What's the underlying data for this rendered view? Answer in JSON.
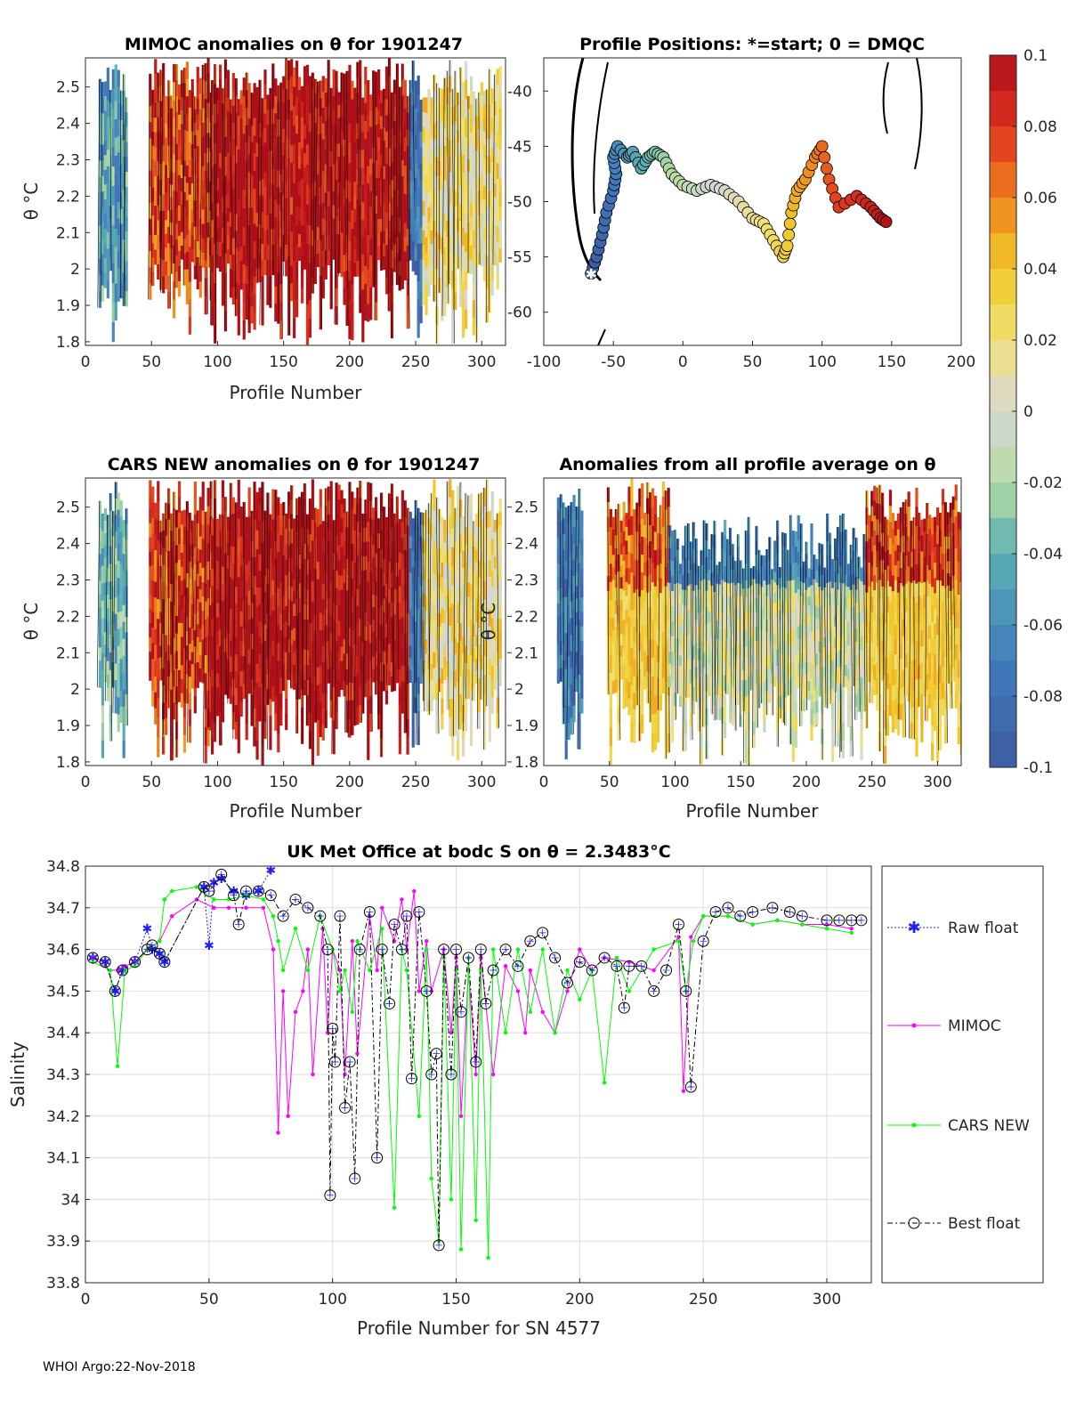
{
  "footer": "WHOI Argo:22-Nov-2018",
  "colors": {
    "axis": "#262626",
    "raw": "#1f1fff",
    "mimoc": "#ff00ff",
    "cars": "#00ff00",
    "best": "#000000"
  },
  "chart_data": [
    {
      "id": "mimoc",
      "type": "heatmap",
      "title": "MIMOC anomalies on θ  for 1901247",
      "xlabel": "Profile Number",
      "ylabel": "θ °C",
      "xlim": [
        0,
        318
      ],
      "ylim": [
        1.79,
        2.58
      ],
      "xticks": [
        "0",
        "50",
        "100",
        "150",
        "200",
        "250",
        "300"
      ],
      "yticks": [
        "1.8",
        "1.9",
        "2",
        "2.1",
        "2.2",
        "2.3",
        "2.4",
        "2.5"
      ],
      "profile_groups": [
        {
          "x": [
            10,
            32
          ],
          "anomaly": -0.05
        },
        {
          "x": [
            48,
            95
          ],
          "anomaly": 0.08
        },
        {
          "x": [
            95,
            245
          ],
          "anomaly": 0.1
        },
        {
          "x": [
            245,
            255
          ],
          "anomaly": -0.08
        },
        {
          "x": [
            255,
            315
          ],
          "anomaly": 0.02
        }
      ]
    },
    {
      "id": "positions",
      "type": "scatter",
      "title": "Profile Positions: *=start; 0 = DMQC",
      "xlim": [
        -100,
        200
      ],
      "ylim": [
        -63,
        -37
      ],
      "xticks": [
        "-100",
        "-50",
        "0",
        "50",
        "100",
        "150",
        "200"
      ],
      "yticks": [
        "-40",
        "-45",
        "-50",
        "-55",
        "-60"
      ],
      "track_lon": [
        -66,
        -62,
        -58,
        -55,
        -50,
        -48,
        -50,
        -47,
        -40,
        -36,
        -30,
        -25,
        -20,
        -14,
        -8,
        0,
        10,
        20,
        30,
        40,
        50,
        58,
        65,
        72,
        75,
        78,
        82,
        88,
        95,
        100,
        105,
        112,
        125,
        135,
        142,
        148
      ],
      "track_lat": [
        -56.5,
        -55,
        -53,
        -51,
        -49,
        -47.5,
        -46,
        -45,
        -46,
        -45.5,
        -47,
        -46,
        -45.5,
        -46,
        -47.5,
        -48.5,
        -49,
        -48.5,
        -49,
        -50,
        -51.5,
        -52,
        -53.5,
        -55,
        -54,
        -51,
        -49,
        -48,
        -46,
        -45,
        -48,
        -50.5,
        -49.5,
        -50.5,
        -51.5,
        -52
      ],
      "start": [
        -66,
        -56.5
      ]
    },
    {
      "id": "colorbar",
      "type": "heatmap",
      "ticks": [
        "0.1",
        "0.08",
        "0.06",
        "0.04",
        "0.02",
        "0",
        "-0.02",
        "-0.04",
        "-0.06",
        "-0.08",
        "-0.1"
      ],
      "range": [
        -0.1,
        0.1
      ]
    },
    {
      "id": "cars",
      "type": "heatmap",
      "title": "CARS NEW anomalies on θ for 1901247",
      "xlabel": "Profile Number",
      "ylabel": "θ °C",
      "xlim": [
        0,
        318
      ],
      "ylim": [
        1.79,
        2.58
      ],
      "xticks": [
        "0",
        "50",
        "100",
        "150",
        "200",
        "250",
        "300"
      ],
      "yticks": [
        "1.8",
        "1.9",
        "2",
        "2.1",
        "2.2",
        "2.3",
        "2.4",
        "2.5"
      ],
      "profile_groups": [
        {
          "x": [
            10,
            32
          ],
          "anomaly": -0.04
        },
        {
          "x": [
            48,
            95
          ],
          "anomaly": 0.08
        },
        {
          "x": [
            95,
            245
          ],
          "anomaly": 0.1
        },
        {
          "x": [
            245,
            255
          ],
          "anomaly": -0.08
        },
        {
          "x": [
            255,
            315
          ],
          "anomaly": 0.02
        }
      ]
    },
    {
      "id": "allavg",
      "type": "heatmap",
      "title": "Anomalies from all profile average on θ",
      "xlabel": "Profile Number",
      "ylabel": "θ °C",
      "xlim": [
        0,
        318
      ],
      "ylim": [
        1.79,
        2.58
      ],
      "xticks": [
        "0",
        "50",
        "100",
        "150",
        "200",
        "250",
        "300"
      ],
      "yticks": [
        "1.8",
        "1.9",
        "2",
        "2.1",
        "2.2",
        "2.3",
        "2.4",
        "2.5"
      ],
      "profile_groups": [
        {
          "x": [
            10,
            30
          ],
          "anomaly": -0.07
        },
        {
          "x": [
            48,
            95
          ],
          "anomaly": 0.07
        },
        {
          "x": [
            95,
            245
          ],
          "anomaly": 0.0
        },
        {
          "x": [
            245,
            318
          ],
          "anomaly": 0.08
        }
      ]
    },
    {
      "id": "salinity",
      "type": "line",
      "title": "UK Met Office at bodc S on θ = 2.3483°C",
      "xlabel": "Profile Number for SN 4577",
      "ylabel": "Salinity",
      "xlim": [
        0,
        318
      ],
      "ylim": [
        33.8,
        34.8
      ],
      "xticks": [
        "0",
        "50",
        "100",
        "150",
        "200",
        "250",
        "300"
      ],
      "yticks": [
        "34.8",
        "34.7",
        "34.6",
        "34.5",
        "34.4",
        "34.3",
        "34.2",
        "34.1",
        "34",
        "33.9",
        "33.8"
      ],
      "legend": [
        "Raw float",
        "MIMOC",
        "CARS NEW",
        "Best float"
      ],
      "series": [
        {
          "name": "Raw float",
          "x": [
            3,
            8,
            12,
            15,
            20,
            25,
            27,
            30,
            32,
            48,
            50,
            52,
            55,
            60,
            65,
            70,
            75
          ],
          "y": [
            34.58,
            34.57,
            34.5,
            34.55,
            34.57,
            34.65,
            34.6,
            34.59,
            34.57,
            34.75,
            34.61,
            34.76,
            34.77,
            34.74,
            34.73,
            34.74,
            34.79
          ]
        },
        {
          "name": "MIMOC",
          "x": [
            3,
            10,
            13,
            16,
            20,
            25,
            30,
            35,
            45,
            52,
            58,
            65,
            72,
            76,
            78,
            80,
            82,
            85,
            88,
            90,
            92,
            96,
            98,
            100,
            103,
            105,
            108,
            110,
            115,
            118,
            120,
            125,
            128,
            130,
            133,
            135,
            138,
            140,
            145,
            148,
            150,
            152,
            155,
            158,
            160,
            165,
            170,
            175,
            178,
            180,
            185,
            190,
            195,
            200,
            205,
            210,
            220,
            230,
            240,
            242,
            245,
            250,
            260,
            270,
            280,
            290,
            300,
            310
          ],
          "y": [
            34.58,
            34.55,
            34.55,
            34.56,
            34.57,
            34.6,
            34.62,
            34.68,
            34.72,
            34.7,
            34.7,
            34.7,
            34.7,
            34.6,
            34.16,
            34.5,
            34.2,
            34.45,
            34.5,
            34.6,
            34.3,
            34.65,
            34.4,
            34.6,
            34.55,
            34.3,
            34.62,
            34.35,
            34.68,
            34.55,
            34.7,
            34.62,
            34.72,
            34.6,
            34.74,
            34.5,
            34.62,
            34.5,
            34.6,
            34.4,
            34.58,
            34.2,
            34.55,
            34.3,
            34.58,
            34.3,
            34.56,
            34.5,
            34.4,
            34.55,
            34.45,
            34.4,
            34.5,
            34.6,
            34.55,
            34.58,
            34.57,
            34.55,
            34.63,
            34.26,
            34.63,
            34.68,
            34.68,
            34.66,
            34.67,
            34.66,
            34.66,
            34.65
          ]
        },
        {
          "name": "CARS NEW",
          "x": [
            3,
            10,
            13,
            16,
            20,
            25,
            30,
            32,
            35,
            45,
            52,
            58,
            65,
            72,
            76,
            78,
            80,
            85,
            90,
            95,
            100,
            103,
            105,
            108,
            110,
            115,
            120,
            125,
            128,
            130,
            135,
            138,
            140,
            143,
            145,
            148,
            150,
            152,
            155,
            158,
            160,
            163,
            165,
            170,
            175,
            180,
            185,
            190,
            195,
            200,
            205,
            210,
            215,
            220,
            230,
            240,
            243,
            246,
            250,
            260,
            270,
            280,
            290,
            300,
            310
          ],
          "y": [
            34.57,
            34.55,
            34.32,
            34.55,
            34.56,
            34.6,
            34.62,
            34.72,
            34.74,
            34.75,
            34.72,
            34.72,
            34.73,
            34.72,
            34.68,
            34.62,
            34.55,
            34.65,
            34.55,
            34.68,
            34.6,
            34.5,
            34.55,
            34.45,
            34.62,
            34.55,
            34.65,
            33.98,
            34.6,
            34.55,
            34.2,
            34.6,
            34.05,
            33.9,
            34.58,
            34.0,
            34.55,
            33.88,
            34.58,
            33.95,
            34.55,
            33.86,
            34.6,
            34.4,
            34.6,
            34.45,
            34.6,
            34.4,
            34.55,
            34.48,
            34.55,
            34.28,
            34.58,
            34.5,
            34.6,
            34.62,
            34.5,
            34.62,
            34.68,
            34.68,
            34.66,
            34.67,
            34.66,
            34.65,
            34.64
          ]
        },
        {
          "name": "Best float",
          "x": [
            3,
            8,
            12,
            15,
            20,
            25,
            27,
            30,
            32,
            48,
            50,
            55,
            60,
            62,
            65,
            70,
            75,
            80,
            85,
            90,
            95,
            98,
            99,
            100,
            101,
            103,
            105,
            107,
            109,
            111,
            115,
            118,
            120,
            123,
            125,
            128,
            130,
            132,
            135,
            138,
            140,
            142,
            143,
            145,
            148,
            150,
            152,
            155,
            158,
            160,
            162,
            165,
            170,
            175,
            180,
            185,
            190,
            195,
            200,
            205,
            210,
            215,
            218,
            220,
            225,
            230,
            235,
            240,
            243,
            245,
            250,
            255,
            260,
            265,
            270,
            278,
            285,
            290,
            300,
            305,
            310,
            314
          ],
          "y": [
            34.58,
            34.57,
            34.5,
            34.55,
            34.57,
            34.6,
            34.61,
            34.59,
            34.57,
            34.75,
            34.74,
            34.78,
            34.73,
            34.66,
            34.74,
            34.74,
            34.73,
            34.68,
            34.72,
            34.7,
            34.68,
            34.6,
            34.01,
            34.41,
            34.33,
            34.68,
            34.22,
            34.33,
            34.05,
            34.6,
            34.69,
            34.1,
            34.6,
            34.47,
            34.66,
            34.6,
            34.68,
            34.29,
            34.69,
            34.5,
            34.3,
            34.35,
            33.89,
            34.6,
            34.3,
            34.6,
            34.45,
            34.58,
            34.33,
            34.6,
            34.47,
            34.55,
            34.6,
            34.56,
            34.62,
            34.64,
            34.58,
            34.52,
            34.57,
            34.55,
            34.58,
            34.56,
            34.46,
            34.56,
            34.56,
            34.5,
            34.55,
            34.66,
            34.5,
            34.27,
            34.62,
            34.69,
            34.7,
            34.68,
            34.69,
            34.7,
            34.69,
            34.68,
            34.67,
            34.67,
            34.67,
            34.67
          ]
        }
      ]
    }
  ]
}
